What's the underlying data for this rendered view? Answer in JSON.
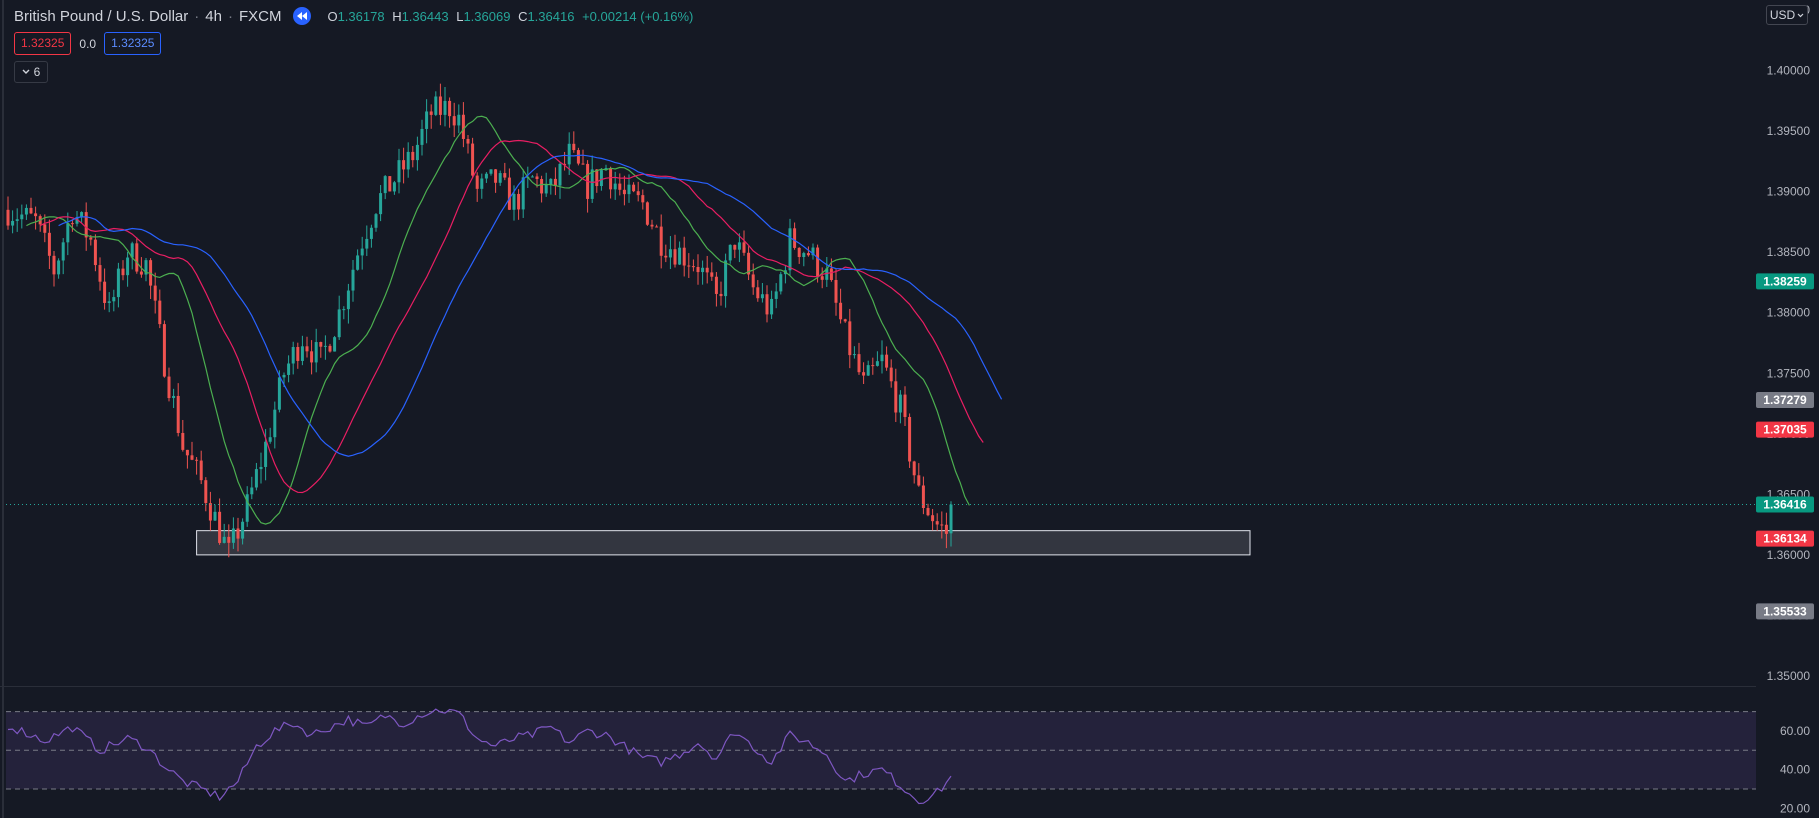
{
  "header": {
    "symbol_name": "British Pound / U.S. Dollar",
    "interval": "4h",
    "exchange": "FXCM",
    "ohlc": {
      "o_label": "O",
      "o": "1.36178",
      "h_label": "H",
      "h": "1.36443",
      "l_label": "L",
      "l": "1.36069",
      "c_label": "C",
      "c": "1.36416",
      "change": "+0.00214 (+0.16%)"
    }
  },
  "quote": {
    "sell": "1.32325",
    "spread": "0.0",
    "buy": "1.32325"
  },
  "indicators_toggle": {
    "count": "6"
  },
  "currency": {
    "label": "USD"
  },
  "colors": {
    "background": "#151924",
    "up": "#26a69a",
    "down": "#ef5350",
    "ma_fast": "#4caf50",
    "ma_mid": "#e91e63",
    "ma_slow": "#2962ff",
    "rsi_line": "#7e57c2",
    "rsi_band": "#7e57c2"
  },
  "chart_data": {
    "type": "candlestick",
    "price_axis": {
      "range": [
        1.34917,
        1.40583
      ],
      "ticks": [
        "1.35000",
        "1.35500",
        "1.36000",
        "1.36500",
        "1.37000",
        "1.37500",
        "1.38000",
        "1.38500",
        "1.39000",
        "1.39500",
        "1.40000",
        "1.40500"
      ]
    },
    "price_labels": [
      {
        "value": 1.38259,
        "text": "1.38259",
        "color": "#089981"
      },
      {
        "value": 1.37279,
        "text": "1.37279",
        "color": "#787b86"
      },
      {
        "value": 1.37035,
        "text": "1.37035",
        "color": "#f23645"
      },
      {
        "value": 1.36416,
        "text": "1.36416",
        "color": "#089981"
      },
      {
        "value": 1.36134,
        "text": "1.36134",
        "color": "#f23645"
      },
      {
        "value": 1.35533,
        "text": "1.35533",
        "color": "#787b86"
      }
    ],
    "current_price": 1.36416,
    "support_zone": {
      "from": 1.36,
      "to": 1.362,
      "bar_start": 41,
      "bar_end": 270
    },
    "close_path": [
      [
        0,
        1.3885
      ],
      [
        6,
        1.3875
      ],
      [
        10,
        1.3835
      ],
      [
        14,
        1.3885
      ],
      [
        18,
        1.386
      ],
      [
        22,
        1.38
      ],
      [
        26,
        1.385
      ],
      [
        30,
        1.384
      ],
      [
        34,
        1.376
      ],
      [
        38,
        1.369
      ],
      [
        42,
        1.366
      ],
      [
        46,
        1.362
      ],
      [
        48,
        1.36
      ],
      [
        52,
        1.364
      ],
      [
        56,
        1.369
      ],
      [
        60,
        1.375
      ],
      [
        64,
        1.378
      ],
      [
        68,
        1.376
      ],
      [
        72,
        1.38
      ],
      [
        76,
        1.385
      ],
      [
        80,
        1.389
      ],
      [
        84,
        1.391
      ],
      [
        88,
        1.393
      ],
      [
        92,
        1.3965
      ],
      [
        96,
        1.397
      ],
      [
        98,
        1.396
      ],
      [
        102,
        1.39
      ],
      [
        106,
        1.391
      ],
      [
        110,
        1.389
      ],
      [
        114,
        1.391
      ],
      [
        118,
        1.39
      ],
      [
        122,
        1.393
      ],
      [
        126,
        1.3905
      ],
      [
        130,
        1.392
      ],
      [
        134,
        1.3895
      ],
      [
        138,
        1.389
      ],
      [
        142,
        1.386
      ],
      [
        146,
        1.385
      ],
      [
        150,
        1.384
      ],
      [
        154,
        1.381
      ],
      [
        158,
        1.386
      ],
      [
        162,
        1.382
      ],
      [
        166,
        1.38
      ],
      [
        170,
        1.386
      ],
      [
        174,
        1.385
      ],
      [
        178,
        1.383
      ],
      [
        182,
        1.378
      ],
      [
        186,
        1.374
      ],
      [
        190,
        1.376
      ],
      [
        194,
        1.372
      ],
      [
        198,
        1.365
      ],
      [
        202,
        1.3625
      ],
      [
        205,
        1.3615
      ]
    ],
    "last_bar": {
      "o": 1.36178,
      "h": 1.36443,
      "l": 1.36069,
      "c": 1.36416
    },
    "rsi": {
      "axis_ticks": [
        "20.00",
        "40.00",
        "60.00"
      ],
      "range": [
        15,
        76
      ],
      "band": [
        30,
        70
      ],
      "path": [
        [
          0,
          63
        ],
        [
          8,
          55
        ],
        [
          14,
          62
        ],
        [
          20,
          50
        ],
        [
          26,
          56
        ],
        [
          30,
          52
        ],
        [
          34,
          42
        ],
        [
          38,
          34
        ],
        [
          42,
          30
        ],
        [
          46,
          26
        ],
        [
          50,
          34
        ],
        [
          54,
          52
        ],
        [
          58,
          60
        ],
        [
          62,
          64
        ],
        [
          66,
          58
        ],
        [
          70,
          62
        ],
        [
          74,
          66
        ],
        [
          78,
          62
        ],
        [
          82,
          68
        ],
        [
          86,
          64
        ],
        [
          90,
          69
        ],
        [
          94,
          71
        ],
        [
          98,
          69
        ],
        [
          102,
          56
        ],
        [
          106,
          52
        ],
        [
          110,
          56
        ],
        [
          114,
          58
        ],
        [
          118,
          62
        ],
        [
          122,
          54
        ],
        [
          126,
          60
        ],
        [
          130,
          58
        ],
        [
          134,
          52
        ],
        [
          138,
          46
        ],
        [
          142,
          44
        ],
        [
          146,
          48
        ],
        [
          150,
          54
        ],
        [
          154,
          46
        ],
        [
          158,
          60
        ],
        [
          162,
          52
        ],
        [
          166,
          44
        ],
        [
          170,
          58
        ],
        [
          174,
          54
        ],
        [
          178,
          48
        ],
        [
          182,
          34
        ],
        [
          186,
          38
        ],
        [
          190,
          40
        ],
        [
          194,
          32
        ],
        [
          198,
          24
        ],
        [
          202,
          28
        ],
        [
          205,
          36
        ]
      ]
    },
    "bar_count": 206,
    "ma_lengths": [
      10,
      20,
      30
    ]
  }
}
